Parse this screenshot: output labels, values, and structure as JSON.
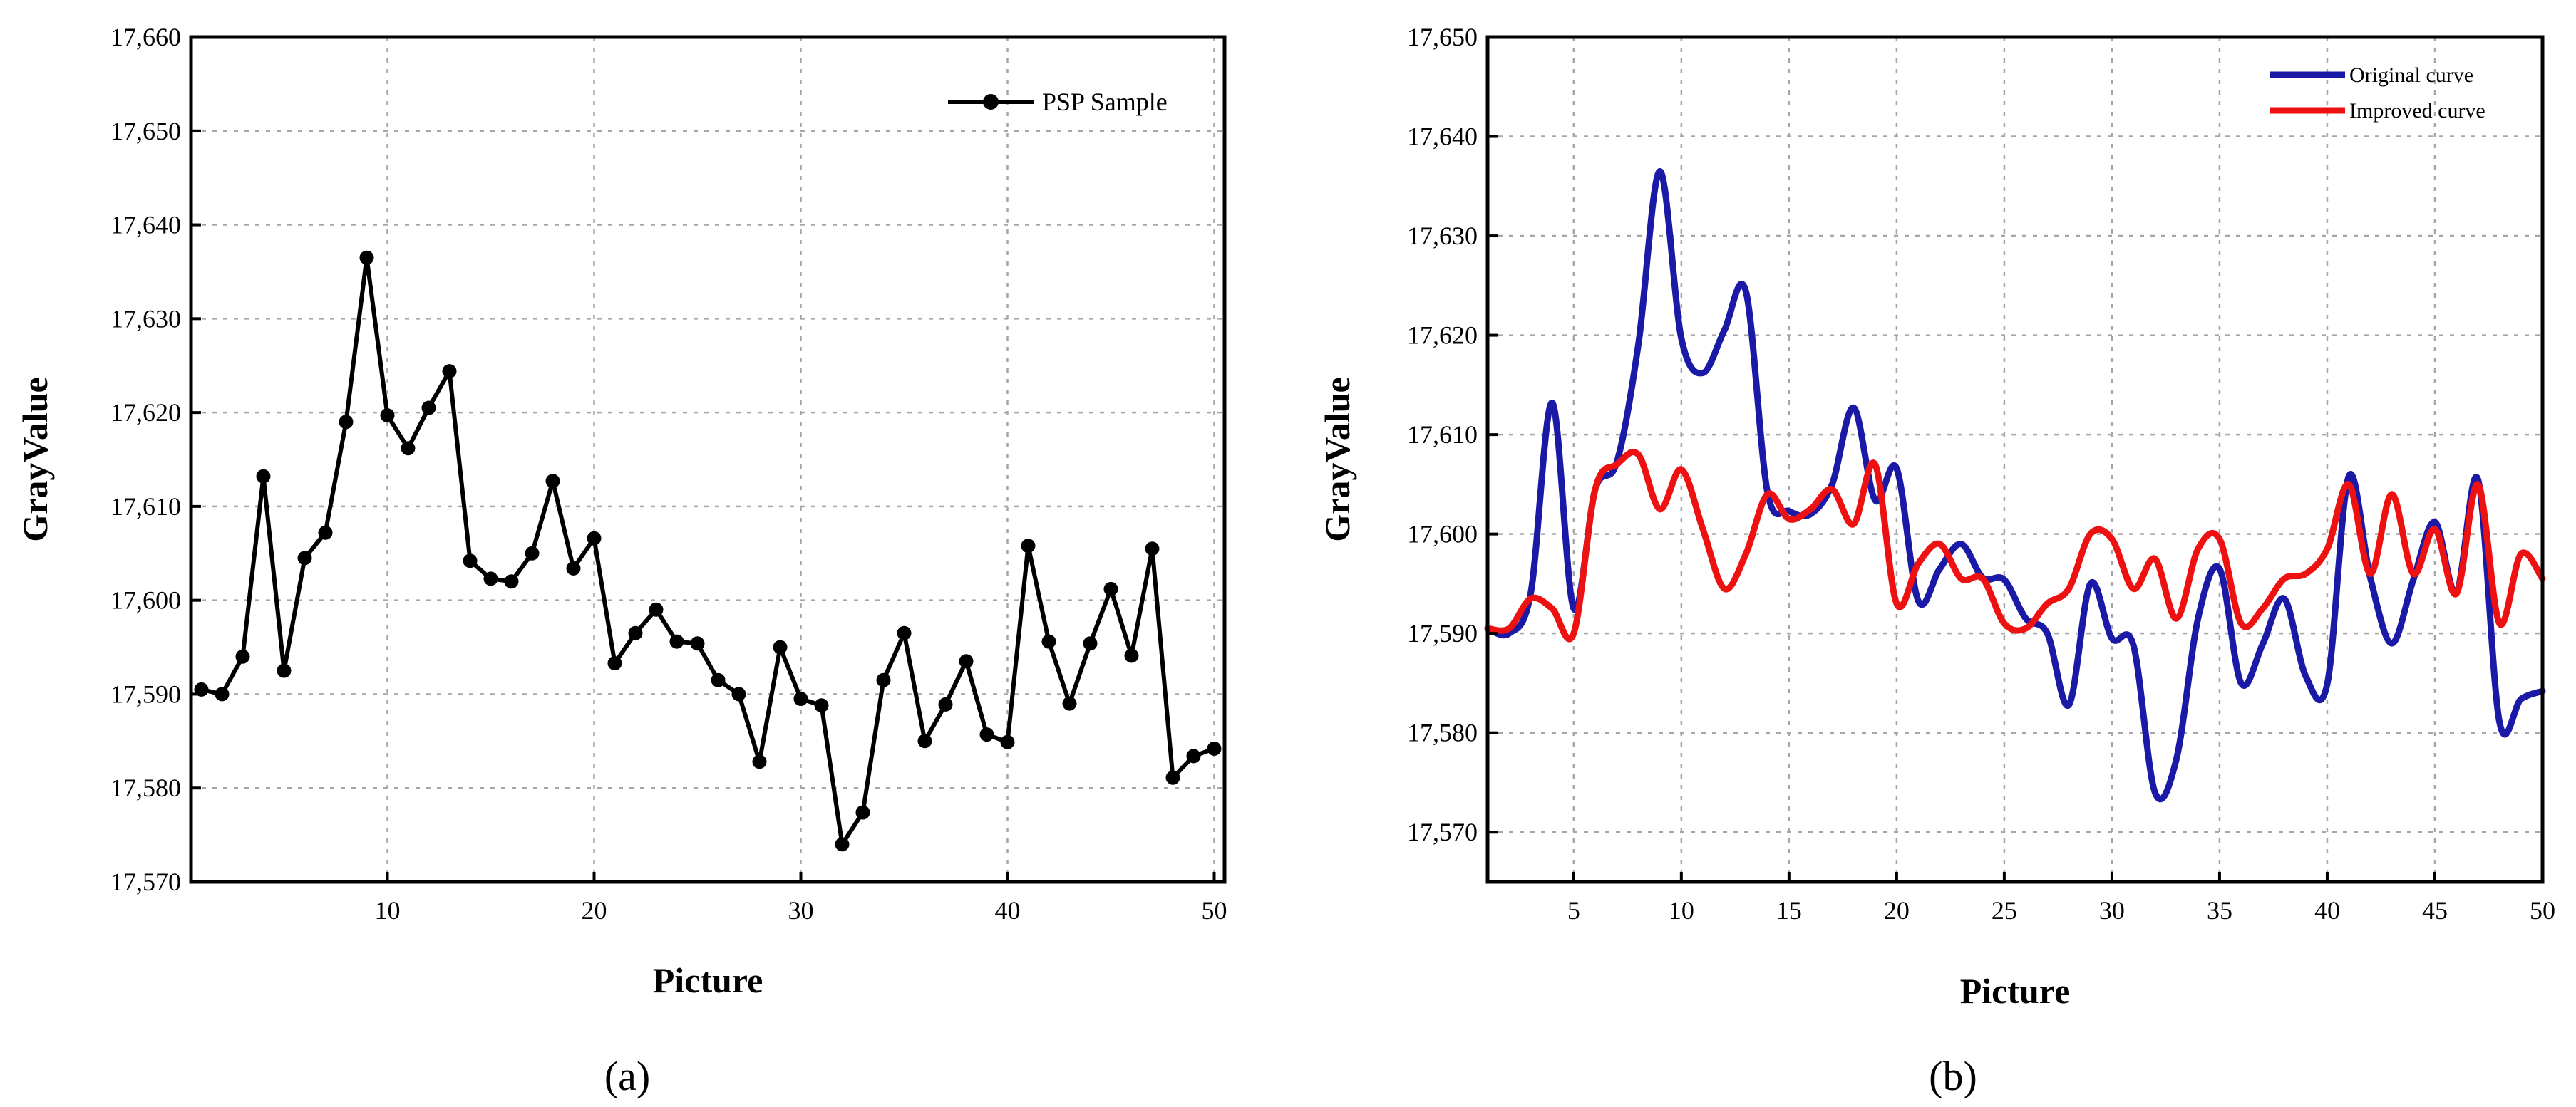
{
  "panels": [
    {
      "panel_label": "(a)",
      "legend": [
        "PSP Sample"
      ],
      "xlabel": "Picture",
      "ylabel": "GrayValue",
      "x_ticks": [
        "10",
        "20",
        "30",
        "40",
        "50"
      ],
      "y_ticks": [
        "17,570",
        "17,580",
        "17,590",
        "17,600",
        "17,610",
        "17,620",
        "17,630",
        "17,640",
        "17,650",
        "17,660"
      ]
    },
    {
      "panel_label": "(b)",
      "legend": [
        "Original curve",
        "Improved curve"
      ],
      "xlabel": "Picture",
      "ylabel": "GrayValue",
      "x_ticks": [
        "5",
        "10",
        "15",
        "20",
        "25",
        "30",
        "35",
        "40",
        "45",
        "50"
      ],
      "y_ticks": [
        "17,570",
        "17,580",
        "17,590",
        "17,600",
        "17,610",
        "17,620",
        "17,630",
        "17,640",
        "17,650"
      ]
    }
  ],
  "chart_data": [
    {
      "type": "line",
      "panel": "(a)",
      "xlabel": "Picture",
      "ylabel": "GrayValue",
      "xlim": [
        0.5,
        50.5
      ],
      "ylim": [
        17570,
        17660
      ],
      "grid": true,
      "legend_position": "top-right",
      "markers": true,
      "series": [
        {
          "name": "PSP Sample",
          "color": "#000000",
          "x": [
            1,
            2,
            3,
            4,
            5,
            6,
            7,
            8,
            9,
            10,
            11,
            12,
            13,
            14,
            15,
            16,
            17,
            18,
            19,
            20,
            21,
            22,
            23,
            24,
            25,
            26,
            27,
            28,
            29,
            30,
            31,
            32,
            33,
            34,
            35,
            36,
            37,
            38,
            39,
            40,
            41,
            42,
            43,
            44,
            45,
            46,
            47,
            48,
            49,
            50
          ],
          "values": [
            17590.5,
            17590,
            17594,
            17613.2,
            17592.5,
            17604.5,
            17607.2,
            17619,
            17636.5,
            17619.7,
            17616.2,
            17620.5,
            17624.4,
            17604.2,
            17602.3,
            17602,
            17605,
            17612.7,
            17603.4,
            17606.6,
            17593.3,
            17596.5,
            17599,
            17595.6,
            17595.4,
            17591.5,
            17590,
            17582.8,
            17595,
            17589.5,
            17588.8,
            17574,
            17577.4,
            17591.5,
            17596.5,
            17585,
            17588.9,
            17593.5,
            17585.7,
            17584.9,
            17605.8,
            17595.6,
            17589,
            17595.4,
            17601.2,
            17594.1,
            17605.5,
            17581.1,
            17583.4,
            17584.2
          ]
        }
      ]
    },
    {
      "type": "line",
      "panel": "(b)",
      "xlabel": "Picture",
      "ylabel": "GrayValue",
      "xlim": [
        1,
        50
      ],
      "ylim": [
        17565,
        17650
      ],
      "grid": true,
      "legend_position": "top-right",
      "smooth": true,
      "series": [
        {
          "name": "Original curve",
          "color": "#1a1aa6",
          "x": [
            1,
            2,
            3,
            4,
            5,
            6,
            7,
            8,
            9,
            10,
            11,
            12,
            13,
            14,
            15,
            16,
            17,
            18,
            19,
            20,
            21,
            22,
            23,
            24,
            25,
            26,
            27,
            28,
            29,
            30,
            31,
            32,
            33,
            34,
            35,
            36,
            37,
            38,
            39,
            40,
            41,
            42,
            43,
            44,
            45,
            46,
            47,
            48,
            49,
            50
          ],
          "values": [
            17590.5,
            17590,
            17594,
            17613.2,
            17592.5,
            17604.5,
            17607.2,
            17619,
            17636.5,
            17619.7,
            17616.2,
            17620.5,
            17624.4,
            17604.2,
            17602.3,
            17602,
            17605,
            17612.7,
            17603.4,
            17606.6,
            17593.3,
            17596.5,
            17599,
            17595.6,
            17595.4,
            17591.5,
            17590,
            17582.8,
            17595,
            17589.5,
            17588.8,
            17574,
            17577.4,
            17591.5,
            17596.5,
            17585,
            17588.9,
            17593.5,
            17585.7,
            17584.9,
            17605.8,
            17595.6,
            17589,
            17595.4,
            17601.2,
            17594.1,
            17605.5,
            17581.1,
            17583.4,
            17584.2
          ]
        },
        {
          "name": "Improved curve",
          "color": "#ee1111",
          "x": [
            1,
            2,
            3,
            4,
            5,
            6,
            7,
            8,
            9,
            10,
            11,
            12,
            13,
            14,
            15,
            16,
            17,
            18,
            19,
            20,
            21,
            22,
            23,
            24,
            25,
            26,
            27,
            28,
            29,
            30,
            31,
            32,
            33,
            34,
            35,
            36,
            37,
            38,
            39,
            40,
            41,
            42,
            43,
            44,
            45,
            46,
            47,
            48,
            49,
            50
          ],
          "values": [
            17590.5,
            17590.5,
            17593.5,
            17592.5,
            17590,
            17604.5,
            17607,
            17608,
            17602.5,
            17606.5,
            17600.5,
            17594.5,
            17598,
            17604,
            17601.5,
            17602.5,
            17604.5,
            17601,
            17607,
            17593,
            17597,
            17599,
            17595.5,
            17595.5,
            17591,
            17590.5,
            17593,
            17594.5,
            17600,
            17599.5,
            17594.5,
            17597.5,
            17591.5,
            17598.5,
            17599.5,
            17591,
            17592.5,
            17595.5,
            17596,
            17598.5,
            17605,
            17596,
            17604,
            17596,
            17600.5,
            17594,
            17605,
            17591,
            17598,
            17595.5
          ]
        }
      ]
    }
  ]
}
